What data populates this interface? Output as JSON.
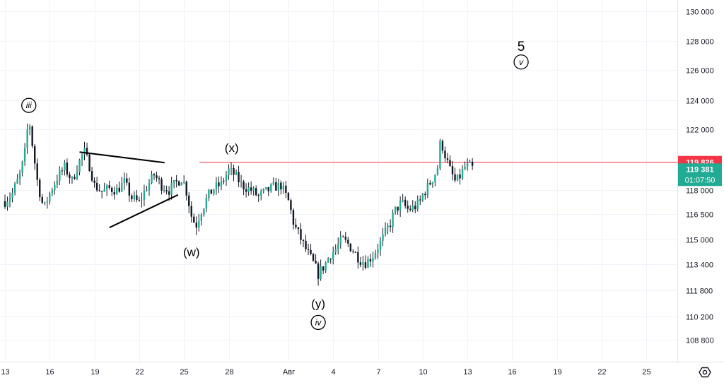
{
  "chart_data": {
    "type": "candlestick",
    "y_axis": {
      "ticks": [
        {
          "value": 130000,
          "label": "130 000"
        },
        {
          "value": 128000,
          "label": "128 000"
        },
        {
          "value": 126000,
          "label": "126 000"
        },
        {
          "value": 124000,
          "label": "124 000"
        },
        {
          "value": 122000,
          "label": "122 000"
        },
        {
          "value": 118000,
          "label": "118 000"
        },
        {
          "value": 116500,
          "label": "116 500"
        },
        {
          "value": 115000,
          "label": "115 000"
        },
        {
          "value": 113400,
          "label": "113 400"
        },
        {
          "value": 111800,
          "label": "111 800"
        },
        {
          "value": 110200,
          "label": "110 200"
        },
        {
          "value": 108800,
          "label": "108 800"
        }
      ]
    },
    "x_axis": {
      "ticks": [
        {
          "value": 13,
          "label": "13"
        },
        {
          "value": 16,
          "label": "16"
        },
        {
          "value": 19,
          "label": "19"
        },
        {
          "value": 22,
          "label": "22"
        },
        {
          "value": 25,
          "label": "25"
        },
        {
          "value": 28,
          "label": "28"
        },
        {
          "value": 32,
          "label": "Авг"
        },
        {
          "value": 35,
          "label": "4"
        },
        {
          "value": 38,
          "label": "7"
        },
        {
          "value": 41,
          "label": "10"
        },
        {
          "value": 44,
          "label": "13"
        },
        {
          "value": 47,
          "label": "16"
        },
        {
          "value": 50,
          "label": "19"
        },
        {
          "value": 53,
          "label": "22"
        },
        {
          "value": 56,
          "label": "25"
        }
      ]
    },
    "price_path": [
      [
        13.0,
        117300
      ],
      [
        13.5,
        117800
      ],
      [
        14.0,
        119000
      ],
      [
        14.3,
        120200
      ],
      [
        14.6,
        122800
      ],
      [
        14.9,
        120500
      ],
      [
        15.2,
        118400
      ],
      [
        15.6,
        116800
      ],
      [
        16.0,
        117800
      ],
      [
        16.5,
        118800
      ],
      [
        17.0,
        119500
      ],
      [
        17.5,
        118600
      ],
      [
        18.0,
        119900
      ],
      [
        18.3,
        120600
      ],
      [
        18.7,
        119500
      ],
      [
        19.0,
        118300
      ],
      [
        19.5,
        117900
      ],
      [
        20.0,
        118100
      ],
      [
        20.5,
        118000
      ],
      [
        21.0,
        118500
      ],
      [
        21.5,
        117500
      ],
      [
        22.0,
        117200
      ],
      [
        22.5,
        118200
      ],
      [
        23.0,
        119000
      ],
      [
        23.5,
        118300
      ],
      [
        24.0,
        118000
      ],
      [
        24.5,
        118500
      ],
      [
        24.9,
        118800
      ],
      [
        25.2,
        117800
      ],
      [
        25.5,
        116400
      ],
      [
        25.8,
        115800
      ],
      [
        26.1,
        116600
      ],
      [
        26.6,
        117600
      ],
      [
        27.0,
        118100
      ],
      [
        27.5,
        118400
      ],
      [
        28.0,
        119300
      ],
      [
        28.4,
        119000
      ],
      [
        28.9,
        118300
      ],
      [
        29.5,
        118000
      ],
      [
        30.0,
        117600
      ],
      [
        30.5,
        117900
      ],
      [
        31.0,
        118200
      ],
      [
        31.5,
        118300
      ],
      [
        32.0,
        117300
      ],
      [
        32.4,
        115800
      ],
      [
        32.8,
        115100
      ],
      [
        33.2,
        114300
      ],
      [
        33.6,
        113600
      ],
      [
        34.0,
        112800
      ],
      [
        34.4,
        113300
      ],
      [
        34.8,
        114000
      ],
      [
        35.2,
        114400
      ],
      [
        35.6,
        115000
      ],
      [
        36.0,
        114700
      ],
      [
        36.4,
        114200
      ],
      [
        36.8,
        113700
      ],
      [
        37.2,
        113500
      ],
      [
        37.6,
        113900
      ],
      [
        38.0,
        114500
      ],
      [
        38.4,
        115200
      ],
      [
        38.8,
        115900
      ],
      [
        39.2,
        116800
      ],
      [
        39.6,
        117200
      ],
      [
        40.0,
        116800
      ],
      [
        40.4,
        116900
      ],
      [
        40.8,
        117200
      ],
      [
        41.0,
        117700
      ],
      [
        41.4,
        118300
      ],
      [
        41.8,
        119000
      ],
      [
        42.0,
        119500
      ],
      [
        42.2,
        121300
      ],
      [
        42.5,
        120300
      ],
      [
        42.8,
        119400
      ],
      [
        43.2,
        118500
      ],
      [
        43.5,
        118900
      ],
      [
        43.8,
        119500
      ],
      [
        44.1,
        119600
      ],
      [
        44.4,
        119381
      ]
    ],
    "annotations": {
      "labels": [
        {
          "id": "iii",
          "text": "iii",
          "circled": true,
          "x": 14.6,
          "price": 123600
        },
        {
          "id": "w",
          "text": "(w)",
          "circled": false,
          "x": 25.5,
          "price": 114200
        },
        {
          "id": "x",
          "text": "(x)",
          "circled": false,
          "x": 28.2,
          "price": 120800
        },
        {
          "id": "y",
          "text": "(y)",
          "circled": false,
          "x": 34.0,
          "price": 111000
        },
        {
          "id": "iv",
          "text": "iv",
          "circled": true,
          "x": 34.0,
          "price": 109800
        },
        {
          "id": "five",
          "text": "5",
          "circled": false,
          "x": 47.6,
          "price": 127600
        },
        {
          "id": "v",
          "text": "v",
          "circled": true,
          "x": 47.6,
          "price": 126500
        }
      ],
      "trendlines": [
        {
          "from": [
            18.0,
            120500
          ],
          "to": [
            23.7,
            119800
          ]
        },
        {
          "from": [
            20.0,
            115700
          ],
          "to": [
            24.6,
            117700
          ]
        }
      ],
      "horizontal_line": {
        "price": 119826,
        "color": "#f23645"
      }
    },
    "price_badges": {
      "level": {
        "label": "119 826",
        "color": "#f23645",
        "price": 119826
      },
      "last": {
        "label": "119 381",
        "countdown": "01:07:50",
        "color": "#22ab94",
        "price": 119381
      }
    },
    "colors": {
      "up": "#22ab94",
      "down": "#131722",
      "wick": "#131722"
    }
  },
  "toolbar": {
    "settings_icon": "hexagon-gear-icon"
  }
}
